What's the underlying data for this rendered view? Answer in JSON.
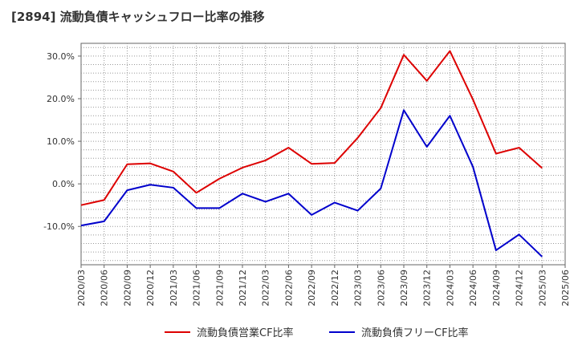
{
  "title": "[2894]  流動負債キャッシュフロー比率の推移",
  "chart_data": {
    "type": "line",
    "title": "[2894]  流動負債キャッシュフロー比率の推移",
    "xlabel": "",
    "ylabel": "",
    "ylim": [
      -19,
      33
    ],
    "yticks": [
      -10,
      0,
      10,
      20,
      30
    ],
    "ytick_labels": [
      "-10.0%",
      "0.0%",
      "10.0%",
      "20.0%",
      "30.0%"
    ],
    "x": [
      "2020/03",
      "2020/06",
      "2020/09",
      "2020/12",
      "2021/03",
      "2021/06",
      "2021/09",
      "2021/12",
      "2022/03",
      "2022/06",
      "2022/09",
      "2022/12",
      "2023/03",
      "2023/06",
      "2023/09",
      "2023/12",
      "2024/03",
      "2024/06",
      "2024/09",
      "2024/12",
      "2025/03",
      "2025/06"
    ],
    "grid": true,
    "legend_position": "bottom",
    "series": [
      {
        "name": "流動負債営業CF比率",
        "color": "#dd0000",
        "values": [
          -5.0,
          -3.8,
          4.6,
          4.8,
          2.9,
          -2.1,
          1.2,
          3.8,
          5.5,
          8.5,
          4.7,
          4.9,
          10.8,
          17.8,
          30.3,
          24.2,
          31.2,
          19.8,
          7.1,
          8.5,
          3.7,
          null
        ]
      },
      {
        "name": "流動負債フリーCF比率",
        "color": "#0000cc",
        "values": [
          -9.8,
          -8.8,
          -1.5,
          -0.2,
          -0.9,
          -5.7,
          -5.7,
          -2.3,
          -4.2,
          -2.3,
          -7.3,
          -4.4,
          -6.3,
          -1.1,
          17.3,
          8.7,
          16.0,
          4.0,
          -15.6,
          -11.9,
          -17.1,
          null
        ]
      }
    ]
  }
}
